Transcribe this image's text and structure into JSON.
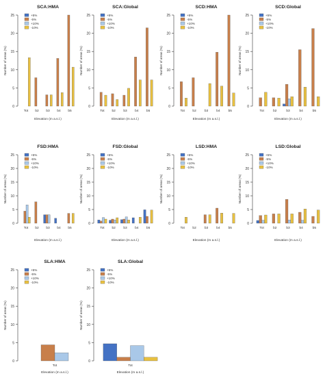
{
  "legend_labels": [
    "+5%",
    "-5%",
    "+10%",
    "-10%"
  ],
  "colors": {
    "+5%": "#4472c4",
    "-5%": "#c87f4a",
    "+10%": "#a9c8e8",
    "-10%": "#e8c040",
    "bar_stroke": "#555555",
    "axis": "#333333"
  },
  "chart_data": [
    {
      "type": "bar",
      "title": "SCA:HMA",
      "xlabel": "Elevation (m a.s.l.)",
      "ylabel": "Number of areas (%)",
      "ylim": [
        0,
        25
      ],
      "yticks": [
        0,
        5,
        10,
        15,
        20,
        25
      ],
      "categories": [
        "Tot",
        "b2",
        "b3",
        "b4",
        "b5"
      ],
      "series": [
        {
          "name": "+5%",
          "values": [
            0,
            0,
            0,
            0,
            0
          ]
        },
        {
          "name": "-5%",
          "values": [
            0,
            7.8,
            3.1,
            13.1,
            25.0
          ]
        },
        {
          "name": "+10%",
          "values": [
            0,
            0,
            0,
            0,
            0
          ]
        },
        {
          "name": "-10%",
          "values": [
            13.3,
            0,
            3.1,
            3.7,
            10.7
          ]
        }
      ]
    },
    {
      "type": "bar",
      "title": "SCA:Global",
      "xlabel": "Elevation (m a.s.l.)",
      "ylabel": "Number of areas (%)",
      "ylim": [
        0,
        25
      ],
      "yticks": [
        0,
        5,
        10,
        15,
        20,
        25
      ],
      "categories": [
        "Tot",
        "b2",
        "b3",
        "b4",
        "b5"
      ],
      "series": [
        {
          "name": "+5%",
          "values": [
            0,
            0,
            0,
            0,
            0
          ]
        },
        {
          "name": "-5%",
          "values": [
            3.8,
            3.4,
            3.0,
            13.5,
            21.5
          ]
        },
        {
          "name": "+10%",
          "values": [
            0,
            0,
            0,
            0,
            0
          ]
        },
        {
          "name": "-10%",
          "values": [
            3.0,
            1.8,
            4.9,
            7.2,
            7.2
          ]
        }
      ]
    },
    {
      "type": "bar",
      "title": "SCD:HMA",
      "xlabel": "Elevation (m a.s.l.)",
      "ylabel": "Number of areas (%)",
      "ylim": [
        0,
        25
      ],
      "yticks": [
        0,
        5,
        10,
        15,
        20,
        25
      ],
      "categories": [
        "Tot",
        "b2",
        "b3",
        "b4",
        "b5"
      ],
      "series": [
        {
          "name": "+5%",
          "values": [
            0,
            0,
            0,
            0,
            0
          ]
        },
        {
          "name": "-5%",
          "values": [
            6.7,
            7.8,
            0,
            14.8,
            25.0
          ]
        },
        {
          "name": "+10%",
          "values": [
            0,
            0,
            0,
            0,
            0
          ]
        },
        {
          "name": "-10%",
          "values": [
            2.2,
            0,
            6.2,
            5.5,
            3.6
          ]
        }
      ]
    },
    {
      "type": "bar",
      "title": "SCD:Global",
      "xlabel": "Elevation (m a.s.l.)",
      "ylabel": "Number of areas (%)",
      "ylim": [
        0,
        25
      ],
      "yticks": [
        0,
        5,
        10,
        15,
        20,
        25
      ],
      "categories": [
        "Tot",
        "b2",
        "b3",
        "b4",
        "b5"
      ],
      "series": [
        {
          "name": "+5%",
          "values": [
            0,
            0,
            0.6,
            0,
            0
          ]
        },
        {
          "name": "-5%",
          "values": [
            2.3,
            2.3,
            6.0,
            15.5,
            21.3
          ]
        },
        {
          "name": "+10%",
          "values": [
            0,
            0,
            2.0,
            0,
            0
          ]
        },
        {
          "name": "-10%",
          "values": [
            3.8,
            2.2,
            2.6,
            5.2,
            2.6
          ]
        }
      ]
    },
    {
      "type": "bar",
      "title": "FSD:HMA",
      "xlabel": "Elevation (m a.s.l.)",
      "ylabel": "Number of areas (%)",
      "ylim": [
        0,
        25
      ],
      "yticks": [
        0,
        5,
        10,
        15,
        20,
        25
      ],
      "categories": [
        "Tot",
        "b2",
        "b3",
        "b4",
        "b5"
      ],
      "series": [
        {
          "name": "+5%",
          "values": [
            0,
            0,
            3.1,
            1.8,
            0
          ]
        },
        {
          "name": "-5%",
          "values": [
            4.4,
            7.8,
            3.1,
            0,
            3.6
          ]
        },
        {
          "name": "+10%",
          "values": [
            6.7,
            0,
            3.1,
            0,
            0
          ]
        },
        {
          "name": "-10%",
          "values": [
            2.2,
            0,
            0,
            0,
            3.6
          ]
        }
      ]
    },
    {
      "type": "bar",
      "title": "FSD:Global",
      "xlabel": "Elevation (m a.s.l.)",
      "ylabel": "Number of areas (%)",
      "ylim": [
        0,
        25
      ],
      "yticks": [
        0,
        5,
        10,
        15,
        20,
        25
      ],
      "categories": [
        "Tot",
        "b2",
        "b3",
        "b4",
        "b5"
      ],
      "series": [
        {
          "name": "+5%",
          "values": [
            1.2,
            1.1,
            1.3,
            2.0,
            4.9
          ]
        },
        {
          "name": "-5%",
          "values": [
            0.8,
            1.5,
            1.5,
            0,
            2.5
          ]
        },
        {
          "name": "+10%",
          "values": [
            2.1,
            1.2,
            2.3,
            0,
            0
          ]
        },
        {
          "name": "-10%",
          "values": [
            1.5,
            2.0,
            1.2,
            2.2,
            4.8
          ]
        }
      ]
    },
    {
      "type": "bar",
      "title": "LSD:HMA",
      "xlabel": "Elevation (m a.s.l.)",
      "ylabel": "Number of areas (%)",
      "ylim": [
        0,
        25
      ],
      "yticks": [
        0,
        5,
        10,
        15,
        20,
        25
      ],
      "categories": [
        "Tot",
        "b2",
        "b3",
        "b4",
        "b5"
      ],
      "series": [
        {
          "name": "+5%",
          "values": [
            0,
            0,
            0,
            0,
            0
          ]
        },
        {
          "name": "-5%",
          "values": [
            0,
            0,
            3.1,
            5.5,
            0
          ]
        },
        {
          "name": "+10%",
          "values": [
            0,
            0,
            0,
            0,
            0
          ]
        },
        {
          "name": "-10%",
          "values": [
            2.2,
            0,
            3.1,
            3.7,
            3.6
          ]
        }
      ]
    },
    {
      "type": "bar",
      "title": "LSD:Global",
      "xlabel": "Elevation (m a.s.l.)",
      "ylabel": "Number of areas (%)",
      "ylim": [
        0,
        25
      ],
      "yticks": [
        0,
        5,
        10,
        15,
        20,
        25
      ],
      "categories": [
        "Tot",
        "b2",
        "b3",
        "b4",
        "b5"
      ],
      "series": [
        {
          "name": "+5%",
          "values": [
            1.0,
            0,
            0,
            0,
            0
          ]
        },
        {
          "name": "-5%",
          "values": [
            2.8,
            3.4,
            8.7,
            4.0,
            2.5
          ]
        },
        {
          "name": "+10%",
          "values": [
            1.1,
            0,
            1.2,
            1.1,
            0
          ]
        },
        {
          "name": "-10%",
          "values": [
            3.0,
            3.4,
            3.4,
            5.2,
            4.8
          ]
        }
      ]
    },
    {
      "type": "bar",
      "title": "SLA:HMA",
      "xlabel": "Elevation (m a.s.l.)",
      "ylabel": "Number of areas (%)",
      "ylim": [
        0,
        25
      ],
      "yticks": [
        0,
        5,
        10,
        15,
        20,
        25
      ],
      "categories": [
        "Tot"
      ],
      "series": [
        {
          "name": "+5%",
          "values": [
            0
          ]
        },
        {
          "name": "-5%",
          "values": [
            4.4
          ]
        },
        {
          "name": "+10%",
          "values": [
            2.2
          ]
        },
        {
          "name": "-10%",
          "values": [
            0
          ]
        }
      ]
    },
    {
      "type": "bar",
      "title": "SLA:Global",
      "xlabel": "Elevation (m a.s.l.)",
      "ylabel": "Number of areas (%)",
      "ylim": [
        0,
        25
      ],
      "yticks": [
        0,
        5,
        10,
        15,
        20,
        25
      ],
      "categories": [
        "Tot"
      ],
      "series": [
        {
          "name": "+5%",
          "values": [
            4.7
          ]
        },
        {
          "name": "-5%",
          "values": [
            1.0
          ]
        },
        {
          "name": "+10%",
          "values": [
            4.2
          ]
        },
        {
          "name": "-10%",
          "values": [
            1.0
          ]
        }
      ]
    }
  ]
}
